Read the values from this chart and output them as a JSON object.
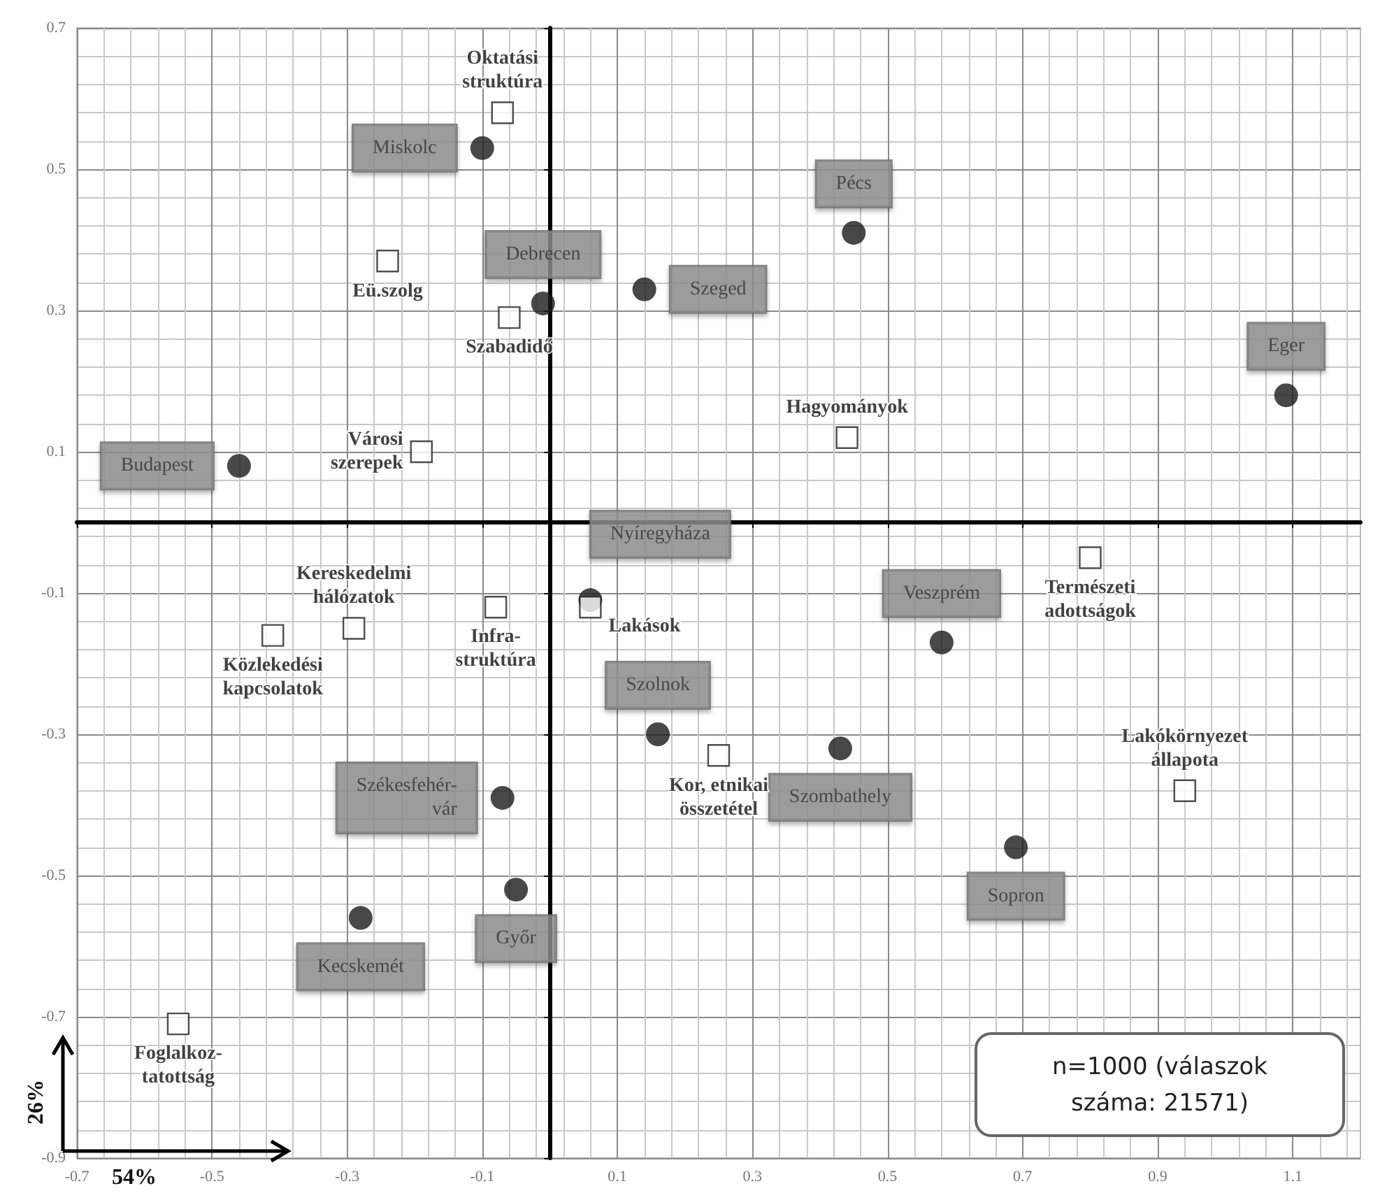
{
  "chart_data": {
    "type": "scatter",
    "xlabel": "54%",
    "ylabel": "26%",
    "xlim": [
      -0.7,
      1.2
    ],
    "xticks": [
      -0.7,
      -0.5,
      -0.3,
      -0.1,
      0.1,
      0.3,
      0.5,
      0.7,
      0.9,
      1.1
    ],
    "ylim": [
      -0.9,
      0.7
    ],
    "yticks": [
      -0.9,
      -0.7,
      -0.5,
      -0.3,
      -0.1,
      0.1,
      0.3,
      0.5,
      0.7
    ],
    "grid": true,
    "annotations": [
      "n=1000 (válaszok száma: 21571)"
    ],
    "series": [
      {
        "color": "#1a1a1a",
        "marker": "circle",
        "x": [
          -0.1,
          -0.01,
          0.14,
          0.45,
          1.09,
          -0.46,
          0.06,
          0.58,
          0.16,
          0.43,
          0.69,
          -0.07,
          -0.05,
          -0.28
        ],
        "values": [
          0.53,
          0.31,
          0.33,
          0.41,
          0.18,
          0.08,
          -0.11,
          -0.17,
          -0.3,
          -0.32,
          -0.46,
          -0.39,
          -0.52,
          -0.56
        ],
        "value_labels": [
          "Miskolc",
          "Debrecen",
          "Szeged",
          "Pécs",
          "Eger",
          "Budapest",
          "Nyíregyháza",
          "Veszprém",
          "Szolnok",
          "Szombathely",
          "Sopron",
          "Székesfehér-vár",
          "Győr",
          "Kecskemét"
        ]
      },
      {
        "color": "#ffffff",
        "marker": "square",
        "x": [
          -0.07,
          -0.24,
          -0.06,
          -0.19,
          0.44,
          0.8,
          -0.29,
          -0.41,
          -0.08,
          0.06,
          0.25,
          0.94,
          -0.55
        ],
        "values": [
          0.58,
          0.37,
          0.29,
          0.1,
          0.12,
          -0.05,
          -0.15,
          -0.16,
          -0.12,
          -0.12,
          -0.33,
          -0.38,
          -0.71
        ],
        "value_labels": [
          "Oktatási struktúra",
          "Eü.szolg",
          "Szabadidő",
          "Városi szerepek",
          "Hagyományok",
          "Természeti adottságok",
          "Kereskedelmi hálózatok",
          "Közlekedési kapcsolatok",
          "Infra-struktúra",
          "Lakások",
          "Kor, etnikai összetétel",
          "Lakókörnyezet állapota",
          "Foglalkoz-tatottság"
        ]
      }
    ]
  }
}
